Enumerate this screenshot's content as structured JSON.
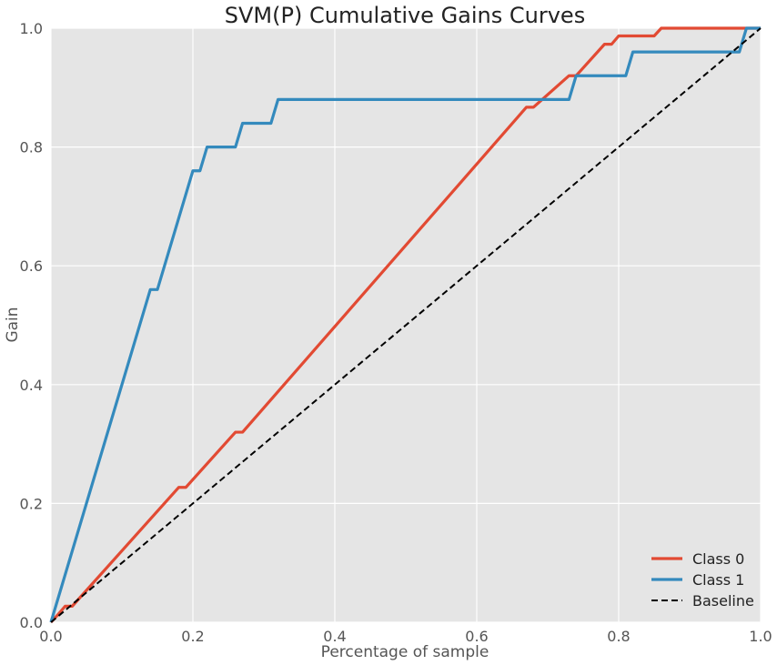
{
  "chart_data": {
    "type": "line",
    "title": "SVM(P) Cumulative Gains Curves",
    "xlabel": "Percentage of sample",
    "ylabel": "Gain",
    "xlim": [
      0,
      1
    ],
    "ylim": [
      0,
      1
    ],
    "xticks": [
      "0.0",
      "0.2",
      "0.4",
      "0.6",
      "0.8",
      "1.0"
    ],
    "yticks": [
      "0.0",
      "0.2",
      "0.4",
      "0.6",
      "0.8",
      "1.0"
    ],
    "grid": true,
    "legend_position": "bottom-right",
    "background": "#e5e5e5",
    "series": [
      {
        "name": "Class 0",
        "color": "#e24a33",
        "dash": false,
        "points": [
          [
            0,
            0
          ],
          [
            0.01,
            0.013
          ],
          [
            0.02,
            0.027
          ],
          [
            0.03,
            0.027
          ],
          [
            0.18,
            0.227
          ],
          [
            0.19,
            0.227
          ],
          [
            0.26,
            0.32
          ],
          [
            0.27,
            0.32
          ],
          [
            0.67,
            0.867
          ],
          [
            0.68,
            0.867
          ],
          [
            0.73,
            0.92
          ],
          [
            0.74,
            0.92
          ],
          [
            0.78,
            0.973
          ],
          [
            0.79,
            0.973
          ],
          [
            0.8,
            0.987
          ],
          [
            0.85,
            0.987
          ],
          [
            0.86,
            1.0
          ],
          [
            1.0,
            1.0
          ]
        ]
      },
      {
        "name": "Class 1",
        "color": "#348abd",
        "dash": false,
        "points": [
          [
            0,
            0
          ],
          [
            0.14,
            0.56
          ],
          [
            0.15,
            0.56
          ],
          [
            0.2,
            0.76
          ],
          [
            0.21,
            0.76
          ],
          [
            0.22,
            0.8
          ],
          [
            0.26,
            0.8
          ],
          [
            0.27,
            0.84
          ],
          [
            0.31,
            0.84
          ],
          [
            0.32,
            0.88
          ],
          [
            0.73,
            0.88
          ],
          [
            0.74,
            0.92
          ],
          [
            0.81,
            0.92
          ],
          [
            0.82,
            0.96
          ],
          [
            0.97,
            0.96
          ],
          [
            0.98,
            1.0
          ],
          [
            1.0,
            1.0
          ]
        ]
      },
      {
        "name": "Baseline",
        "color": "#000000",
        "dash": true,
        "points": [
          [
            0,
            0
          ],
          [
            1,
            1
          ]
        ]
      }
    ]
  }
}
